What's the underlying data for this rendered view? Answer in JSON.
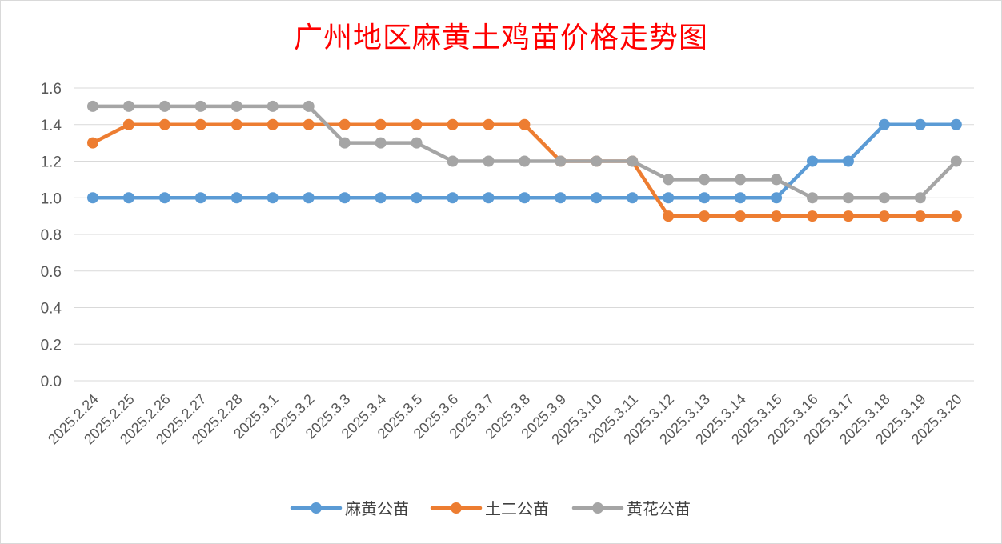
{
  "chart_data": {
    "type": "line",
    "title": "广州地区麻黄土鸡苗价格走势图",
    "xlabel": "",
    "ylabel": "",
    "ylim": [
      0,
      1.6
    ],
    "yticks": [
      "0.0",
      "0.2",
      "0.4",
      "0.6",
      "0.8",
      "1.0",
      "1.2",
      "1.4",
      "1.6"
    ],
    "ytick_values": [
      0,
      0.2,
      0.4,
      0.6,
      0.8,
      1.0,
      1.2,
      1.4,
      1.6
    ],
    "grid": true,
    "legend_position": "bottom",
    "categories": [
      "2025.2.24",
      "2025.2.25",
      "2025.2.26",
      "2025.2.27",
      "2025.2.28",
      "2025.3.1",
      "2025.3.2",
      "2025.3.3",
      "2025.3.4",
      "2025.3.5",
      "2025.3.6",
      "2025.3.7",
      "2025.3.8",
      "2025.3.9",
      "2025.3.10",
      "2025.3.11",
      "2025.3.12",
      "2025.3.13",
      "2025.3.14",
      "2025.3.15",
      "2025.3.16",
      "2025.3.17",
      "2025.3.18",
      "2025.3.19",
      "2025.3.20"
    ],
    "series": [
      {
        "name": "麻黄公苗",
        "color": "#5b9bd5",
        "values": [
          1.0,
          1.0,
          1.0,
          1.0,
          1.0,
          1.0,
          1.0,
          1.0,
          1.0,
          1.0,
          1.0,
          1.0,
          1.0,
          1.0,
          1.0,
          1.0,
          1.0,
          1.0,
          1.0,
          1.0,
          1.2,
          1.2,
          1.4,
          1.4,
          1.4
        ]
      },
      {
        "name": "土二公苗",
        "color": "#ed7d31",
        "values": [
          1.3,
          1.4,
          1.4,
          1.4,
          1.4,
          1.4,
          1.4,
          1.4,
          1.4,
          1.4,
          1.4,
          1.4,
          1.4,
          1.2,
          1.2,
          1.2,
          0.9,
          0.9,
          0.9,
          0.9,
          0.9,
          0.9,
          0.9,
          0.9,
          0.9
        ]
      },
      {
        "name": "黄花公苗",
        "color": "#a5a5a5",
        "values": [
          1.5,
          1.5,
          1.5,
          1.5,
          1.5,
          1.5,
          1.5,
          1.3,
          1.3,
          1.3,
          1.2,
          1.2,
          1.2,
          1.2,
          1.2,
          1.2,
          1.1,
          1.1,
          1.1,
          1.1,
          1.0,
          1.0,
          1.0,
          1.0,
          1.2
        ]
      }
    ]
  }
}
